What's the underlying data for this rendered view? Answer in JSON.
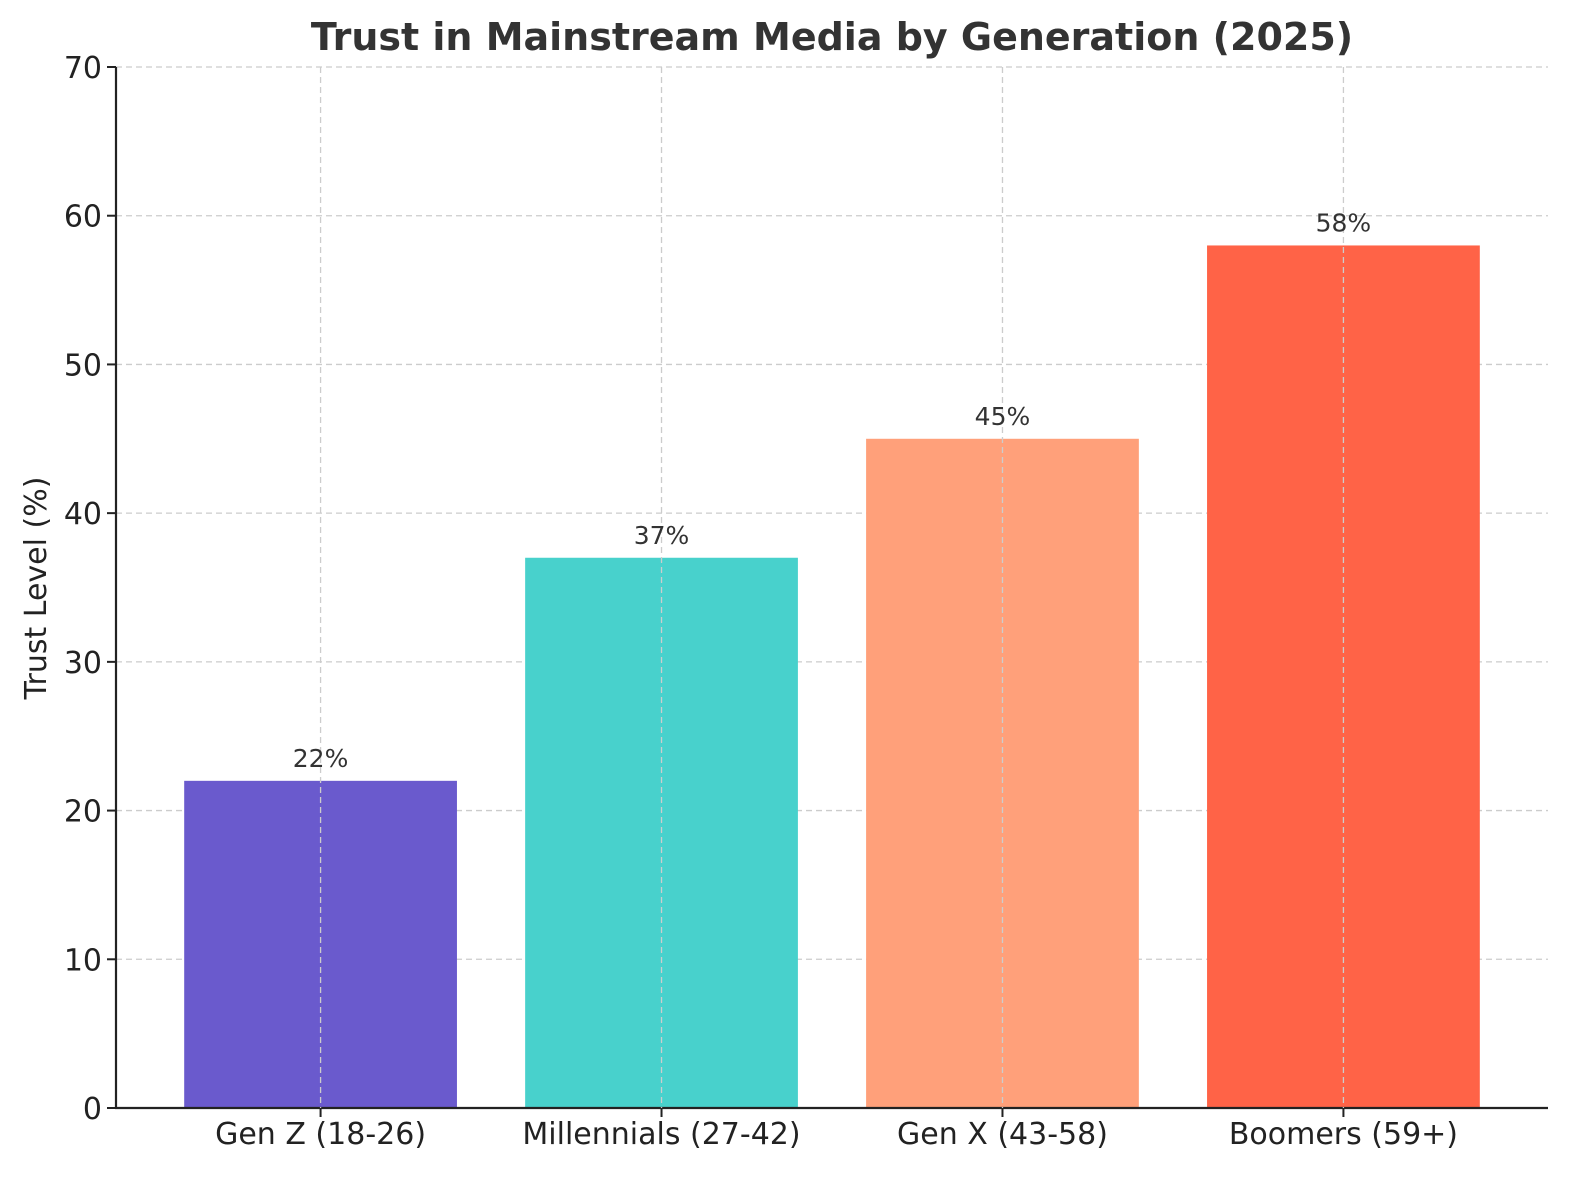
{
  "chart_data": {
    "type": "bar",
    "title": "Trust in Mainstream Media by Generation (2025)",
    "xlabel": "",
    "ylabel": "Trust Level (%)",
    "categories": [
      "Gen Z (18-26)",
      "Millennials (27-42)",
      "Gen X (43-58)",
      "Boomers (59+)"
    ],
    "values": [
      22,
      37,
      45,
      58
    ],
    "data_labels": [
      "22%",
      "37%",
      "45%",
      "58%"
    ],
    "colors": [
      "#6a5acd",
      "#48d1cc",
      "#ffa07a",
      "#ff6347"
    ],
    "ylim": [
      0,
      70
    ],
    "yticks": [
      0,
      10,
      20,
      30,
      40,
      50,
      60,
      70
    ],
    "grid": true
  }
}
